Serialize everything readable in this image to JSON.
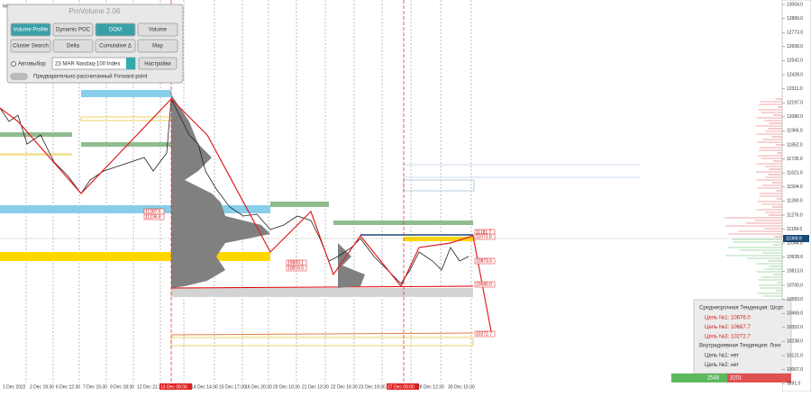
{
  "symbol": "NQ,M30",
  "panel": {
    "title": "ProVolume 2.06",
    "buttons": [
      "Volume Profile",
      "Dynamic POC",
      "DOM",
      "Volume",
      "Cluster Search",
      "Delta",
      "Cumulative Δ",
      "Map"
    ],
    "auto_select": "Автовыбор",
    "instrument": "23 MAR Nasdaq-100 Index",
    "settings": "Настройки",
    "forward_point": "Предварительно рассчитанный Forward-point"
  },
  "price_axis": [
    "13004.0",
    "12889.0",
    "12773.0",
    "12658.0",
    "12542.0",
    "12428.0",
    "12311.0",
    "12197.0",
    "12080.0",
    "11966.0",
    "11852.0",
    "11735.0",
    "11621.0",
    "11504.0",
    "11390.0",
    "11276.0",
    "11159.0",
    "11044.0",
    "10928.0",
    "10813.0",
    "10700.0",
    "10583.0",
    "10469.0",
    "10352.0",
    "10238.0",
    "10121.0",
    "10007.0",
    "9891.0"
  ],
  "current_price": "11069.9",
  "time_axis": [
    "1 Dec 2022",
    "2 Dec 19:30",
    "6 Dec 12:30",
    "7 Dec 15:30",
    "9 Dec 18:30",
    "12 Dec 21:30",
    "13 Dec 08:00",
    "14 Dec 14:30",
    "15 Dec 17:30",
    "16 Dec 20:30",
    "20 Dec 10:30",
    "21 Dec 13:30",
    "22 Dec 16:30",
    "23 Dec 19:30",
    "27 Dec 09:00",
    "28 Dec 12:30",
    "30 Dec 15:30"
  ],
  "chart_labels": [
    "11287.6",
    "11236.8",
    "10883.1",
    "10816.5",
    "11181.7",
    "11071.0",
    "10873.5",
    "10680.0",
    "10272.7"
  ],
  "info": {
    "mid_trend": "Среднесрочная Тенденция: Шорт",
    "mid_targets": [
      "Цель №1: 10676.0",
      "Цель №2: 10667.7",
      "Цель №3: 10272.7"
    ],
    "intraday_trend": "Внутридневная Тенденция: Лонг",
    "intraday_targets": [
      "Цель №1: нет",
      "Цель №2: нет"
    ]
  },
  "balance": {
    "buy": "2548",
    "sell": "3201"
  }
}
